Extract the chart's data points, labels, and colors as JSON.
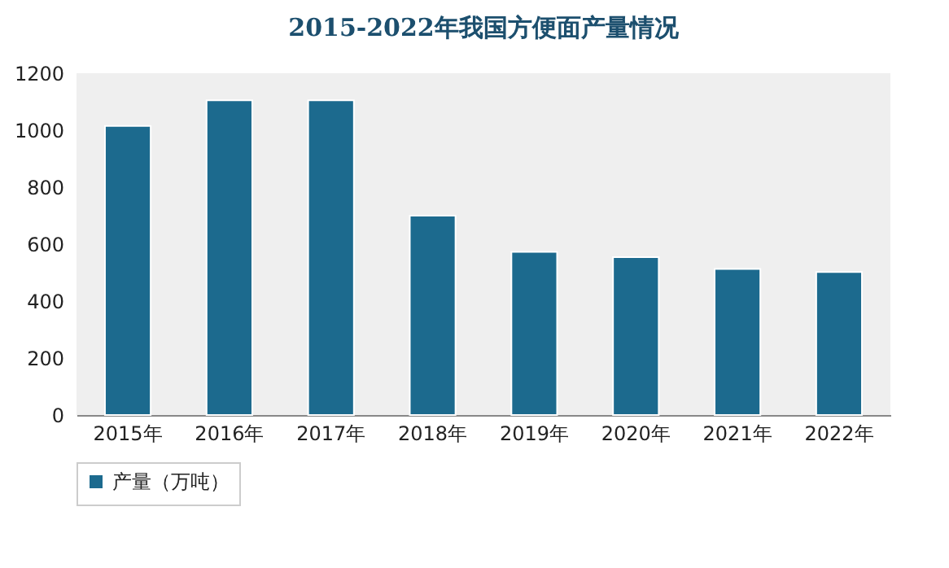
{
  "chart_data": {
    "type": "bar",
    "title": "2015-2022年我国方便面产量情况",
    "categories": [
      "2015年",
      "2016年",
      "2017年",
      "2018年",
      "2019年",
      "2020年",
      "2021年",
      "2022年"
    ],
    "series": [
      {
        "name": "产量（万吨）",
        "color": "#1c6a8e",
        "values": [
          1015,
          1105,
          1105,
          700,
          573,
          554,
          513,
          502
        ]
      }
    ],
    "ylim": [
      0,
      1200
    ],
    "yticks": [
      0,
      200,
      400,
      600,
      800,
      1000,
      1200
    ],
    "grid": false,
    "legend": "bottom"
  }
}
